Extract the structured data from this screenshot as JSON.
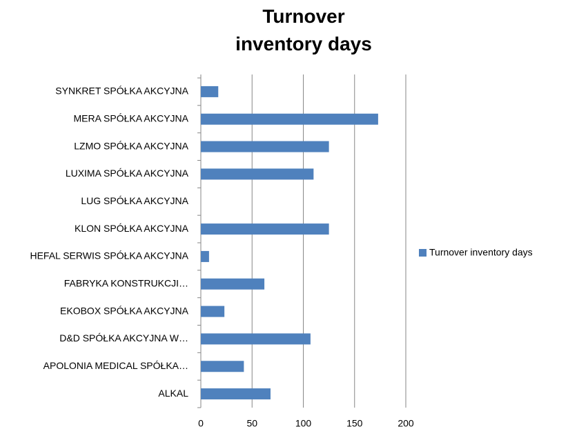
{
  "chart_data": {
    "type": "bar",
    "orientation": "horizontal",
    "title": "Turnover inventory days",
    "categories": [
      "ALKAL",
      "APOLONIA MEDICAL SPÓŁKA…",
      "D&D SPÓŁKA AKCYJNA W…",
      "EKOBOX SPÓŁKA AKCYJNA",
      "FABRYKA KONSTRUKCJI…",
      "HEFAL SERWIS SPÓŁKA AKCYJNA",
      "KLON SPÓŁKA AKCYJNA",
      "LUG SPÓŁKA AKCYJNA",
      "LUXIMA SPÓŁKA AKCYJNA",
      "LZMO SPÓŁKA AKCYJNA",
      "MERA SPÓŁKA AKCYJNA",
      "SYNKRET SPÓŁKA AKCYJNA"
    ],
    "series": [
      {
        "name": "Turnover inventory days",
        "color": "#4f81bd",
        "values": [
          68,
          42,
          107,
          23,
          62,
          8,
          125,
          0,
          110,
          125,
          173,
          17
        ]
      }
    ],
    "xlim": [
      0,
      200
    ],
    "xticks": [
      0,
      50,
      100,
      150,
      200
    ],
    "grid": true,
    "legend": "right"
  }
}
